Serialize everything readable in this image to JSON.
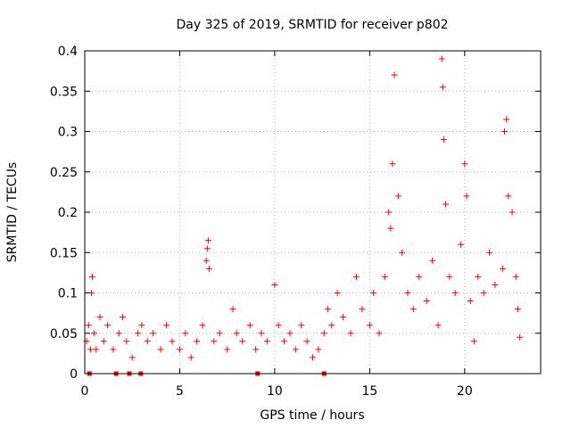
{
  "chart_data": {
    "type": "scatter",
    "title": "Day 325 of 2019, SRMTID for receiver p802",
    "xlabel": "GPS time / hours",
    "ylabel": "SRMTID / TECUs",
    "xlim": [
      0,
      24
    ],
    "ylim": [
      0,
      0.4
    ],
    "xticks": [
      0,
      5,
      10,
      15,
      20
    ],
    "xtick_labels": [
      "0",
      "5",
      "10",
      "15",
      "20"
    ],
    "yticks": [
      0,
      0.05,
      0.1,
      0.15,
      0.2,
      0.25,
      0.3,
      0.35,
      0.4
    ],
    "ytick_labels": [
      "0",
      "0.05",
      "0.1",
      "0.15",
      "0.2",
      "0.25",
      "0.3",
      "0.35",
      "0.4"
    ],
    "grid": true,
    "marker": "+",
    "color": "#ff0000",
    "series": [
      {
        "name": "SRMTID",
        "points": [
          [
            0.1,
            0.04
          ],
          [
            0.2,
            0.06
          ],
          [
            0.3,
            0.03
          ],
          [
            0.35,
            0.1
          ],
          [
            0.4,
            0.12
          ],
          [
            0.5,
            0.05
          ],
          [
            0.6,
            0.03
          ],
          [
            0.8,
            0.07
          ],
          [
            1.0,
            0.04
          ],
          [
            1.2,
            0.06
          ],
          [
            1.5,
            0.03
          ],
          [
            1.8,
            0.05
          ],
          [
            2.0,
            0.07
          ],
          [
            2.2,
            0.04
          ],
          [
            2.5,
            0.02
          ],
          [
            2.8,
            0.05
          ],
          [
            3.0,
            0.06
          ],
          [
            3.3,
            0.04
          ],
          [
            3.6,
            0.05
          ],
          [
            4.0,
            0.03
          ],
          [
            4.3,
            0.06
          ],
          [
            4.6,
            0.04
          ],
          [
            5.0,
            0.03
          ],
          [
            5.3,
            0.05
          ],
          [
            5.6,
            0.02
          ],
          [
            5.9,
            0.04
          ],
          [
            6.2,
            0.06
          ],
          [
            6.4,
            0.14
          ],
          [
            6.45,
            0.155
          ],
          [
            6.5,
            0.165
          ],
          [
            6.55,
            0.13
          ],
          [
            6.8,
            0.04
          ],
          [
            7.1,
            0.05
          ],
          [
            7.5,
            0.03
          ],
          [
            7.8,
            0.08
          ],
          [
            8.0,
            0.05
          ],
          [
            8.3,
            0.04
          ],
          [
            8.7,
            0.06
          ],
          [
            9.0,
            0.03
          ],
          [
            9.3,
            0.05
          ],
          [
            9.6,
            0.04
          ],
          [
            10.0,
            0.11
          ],
          [
            10.2,
            0.06
          ],
          [
            10.5,
            0.04
          ],
          [
            10.8,
            0.05
          ],
          [
            11.1,
            0.03
          ],
          [
            11.4,
            0.06
          ],
          [
            11.7,
            0.04
          ],
          [
            12.0,
            0.02
          ],
          [
            12.3,
            0.03
          ],
          [
            12.6,
            0.05
          ],
          [
            12.8,
            0.08
          ],
          [
            13.0,
            0.06
          ],
          [
            13.3,
            0.1
          ],
          [
            13.6,
            0.07
          ],
          [
            14.0,
            0.05
          ],
          [
            14.3,
            0.12
          ],
          [
            14.6,
            0.08
          ],
          [
            15.0,
            0.06
          ],
          [
            15.2,
            0.1
          ],
          [
            15.5,
            0.05
          ],
          [
            15.8,
            0.12
          ],
          [
            16.0,
            0.2
          ],
          [
            16.1,
            0.18
          ],
          [
            16.2,
            0.26
          ],
          [
            16.3,
            0.37
          ],
          [
            16.5,
            0.22
          ],
          [
            16.7,
            0.15
          ],
          [
            17.0,
            0.1
          ],
          [
            17.3,
            0.08
          ],
          [
            17.6,
            0.12
          ],
          [
            18.0,
            0.09
          ],
          [
            18.3,
            0.14
          ],
          [
            18.6,
            0.06
          ],
          [
            18.8,
            0.39
          ],
          [
            18.85,
            0.355
          ],
          [
            18.9,
            0.29
          ],
          [
            19.0,
            0.21
          ],
          [
            19.2,
            0.12
          ],
          [
            19.5,
            0.1
          ],
          [
            19.8,
            0.16
          ],
          [
            20.0,
            0.26
          ],
          [
            20.1,
            0.22
          ],
          [
            20.3,
            0.09
          ],
          [
            20.5,
            0.04
          ],
          [
            20.7,
            0.12
          ],
          [
            21.0,
            0.1
          ],
          [
            21.3,
            0.15
          ],
          [
            21.6,
            0.11
          ],
          [
            22.0,
            0.13
          ],
          [
            22.1,
            0.3
          ],
          [
            22.2,
            0.315
          ],
          [
            22.3,
            0.22
          ],
          [
            22.5,
            0.2
          ],
          [
            22.7,
            0.12
          ],
          [
            22.8,
            0.08
          ],
          [
            22.9,
            0.045
          ]
        ]
      }
    ],
    "baseline_markers_x": [
      0.25,
      1.65,
      2.35,
      2.95,
      9.1,
      12.6
    ]
  }
}
